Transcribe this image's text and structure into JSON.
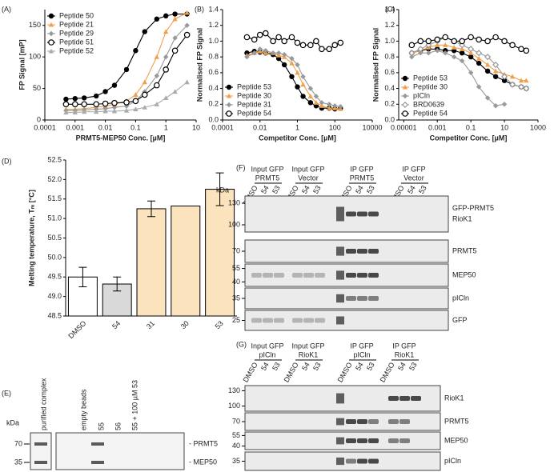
{
  "chart_data": [
    {
      "type": "line",
      "panel": "(A)",
      "x_label": "PRMT5-MEP50 Conc. [µM]",
      "y_label": "FP Signal [mP]",
      "log_x": true,
      "xlim": [
        0.0001,
        10
      ],
      "xticks": [
        0.0001,
        0.001,
        0.01,
        0.1,
        1,
        10
      ],
      "ylim": [
        0,
        175
      ],
      "yticks": [
        0,
        50,
        100,
        150
      ],
      "legend": "upper left",
      "x": [
        0.0005,
        0.001,
        0.002,
        0.005,
        0.01,
        0.02,
        0.05,
        0.1,
        0.2,
        0.5,
        1,
        2,
        5
      ],
      "series": [
        {
          "name": "Peptide 50",
          "color": "#000000",
          "marker": "circle-filled",
          "values": [
            33,
            34,
            35,
            38,
            45,
            55,
            80,
            110,
            140,
            160,
            165,
            168,
            168
          ]
        },
        {
          "name": "Peptide 21",
          "color": "#f0a04b",
          "marker": "triangle",
          "values": [
            17,
            17,
            18,
            20,
            22,
            25,
            30,
            40,
            60,
            100,
            140,
            160,
            170
          ]
        },
        {
          "name": "Peptide 29",
          "color": "#999999",
          "marker": "diamond",
          "values": [
            15,
            15,
            16,
            17,
            18,
            20,
            22,
            30,
            45,
            70,
            100,
            130,
            150
          ]
        },
        {
          "name": "Peptide 51",
          "color": "#000000",
          "marker": "circle-open",
          "values": [
            25,
            25,
            25,
            25,
            26,
            27,
            28,
            30,
            40,
            55,
            80,
            110,
            135
          ]
        },
        {
          "name": "Peptide 52",
          "color": "#aaaaaa",
          "marker": "triangle",
          "values": [
            12,
            12,
            13,
            13,
            14,
            14,
            15,
            17,
            20,
            25,
            35,
            45,
            60
          ]
        }
      ]
    },
    {
      "type": "line",
      "panel": "(B)",
      "x_label": "Competitor Conc. [µM]",
      "y_label": "Normalised FP Signal",
      "log_x": true,
      "xlim": [
        0.0001,
        10000
      ],
      "xticks": [
        0.0001,
        0.01,
        1,
        100,
        10000
      ],
      "ylim": [
        0,
        1.4
      ],
      "yticks": [
        {
          "value": 0,
          "label": "0.0"
        },
        0.2,
        0.4,
        0.6,
        0.8,
        {
          "value": 1,
          "label": "1.0"
        },
        1.2,
        1.4
      ],
      "legend": "lower left",
      "x": [
        0.002,
        0.005,
        0.01,
        0.02,
        0.05,
        0.1,
        0.2,
        0.5,
        1,
        2,
        5,
        10,
        20,
        50,
        100,
        200
      ],
      "series": [
        {
          "name": "Peptide 53",
          "color": "#000000",
          "marker": "circle-filled",
          "values": [
            0.85,
            0.87,
            0.86,
            0.85,
            0.83,
            0.78,
            0.7,
            0.55,
            0.42,
            0.3,
            0.22,
            0.18,
            0.15,
            0.15,
            0.14,
            0.15
          ]
        },
        {
          "name": "Peptide 30",
          "color": "#f0a04b",
          "marker": "triangle",
          "values": [
            0.82,
            0.85,
            0.87,
            0.85,
            0.85,
            0.82,
            0.8,
            0.72,
            0.6,
            0.45,
            0.3,
            0.22,
            0.18,
            0.15,
            0.15,
            0.14
          ]
        },
        {
          "name": "Peptide 31",
          "color": "#999999",
          "marker": "diamond",
          "values": [
            0.8,
            0.85,
            0.9,
            0.88,
            0.85,
            0.85,
            0.83,
            0.78,
            0.7,
            0.55,
            0.4,
            0.3,
            0.22,
            0.2,
            0.18,
            0.17
          ]
        },
        {
          "name": "Peptide 54",
          "color": "#000000",
          "marker": "circle-open",
          "values": [
            1.05,
            1.02,
            1.08,
            1.1,
            1.0,
            1.05,
            1.0,
            1.05,
            0.98,
            0.95,
            0.95,
            1.0,
            0.9,
            0.9,
            0.95,
            0.98
          ]
        }
      ]
    },
    {
      "type": "line",
      "panel": "(C)",
      "x_label": "Competitor Conc. [µM]",
      "y_label": "Normalised FP Signal",
      "log_x": true,
      "xlim": [
        5e-06,
        1000
      ],
      "xticks": [
        1e-05,
        0.001,
        0.1,
        10,
        1000
      ],
      "ylim": [
        0,
        1.4
      ],
      "yticks": [
        {
          "value": 0,
          "label": "0.0"
        },
        0.2,
        0.4,
        0.6,
        0.8,
        {
          "value": 1,
          "label": "1.0"
        },
        1.2,
        1.4
      ],
      "legend": "lower left",
      "x": [
        3e-05,
        0.0001,
        0.0003,
        0.001,
        0.003,
        0.01,
        0.03,
        0.1,
        0.3,
        1,
        3,
        10,
        30,
        100,
        200
      ],
      "series": [
        {
          "name": "Peptide 53",
          "color": "#000000",
          "marker": "circle-filled",
          "values": [
            0.85,
            0.88,
            0.9,
            0.9,
            0.88,
            0.88,
            0.85,
            0.8,
            0.72,
            0.62,
            0.55,
            0.5,
            0.45,
            0.42,
            0.4
          ]
        },
        {
          "name": "Peptide 30",
          "color": "#f0a04b",
          "marker": "triangle",
          "values": [
            0.85,
            0.88,
            0.92,
            0.95,
            0.95,
            0.92,
            0.9,
            0.85,
            0.78,
            0.7,
            0.62,
            0.58,
            0.55,
            0.5,
            0.5
          ]
        },
        {
          "name": "pICln",
          "color": "#999999",
          "marker": "diamond",
          "values": [
            0.8,
            0.85,
            0.85,
            0.88,
            0.85,
            0.8,
            0.75,
            0.6,
            0.42,
            0.28,
            0.18,
            0.2,
            null,
            null,
            null
          ]
        },
        {
          "name": "BRD0639",
          "color": "#999999",
          "marker": "diamond-open",
          "values": [
            0.85,
            0.9,
            0.95,
            1.0,
            1.05,
            1.0,
            0.95,
            0.9,
            0.85,
            0.8,
            0.7,
            0.55,
            0.45,
            0.42,
            0.4
          ]
        },
        {
          "name": "Peptide 54",
          "color": "#000000",
          "marker": "circle-open",
          "values": [
            0.95,
            1.0,
            1.0,
            1.02,
            1.05,
            1.0,
            1.0,
            1.05,
            1.02,
            1.0,
            1.05,
            1.0,
            0.95,
            0.9,
            0.88
          ]
        }
      ]
    },
    {
      "type": "bar",
      "panel": "(D)",
      "y_label": "Melting temperature, Tₘ [°C]",
      "categories": [
        "DMSO",
        "54",
        "31",
        "30",
        "53"
      ],
      "values": [
        49.5,
        49.32,
        51.25,
        51.32,
        51.75
      ],
      "errors": [
        0.25,
        0.18,
        0.2,
        null,
        0.42
      ],
      "colors": [
        "#ffffff",
        "#d9d9d9",
        "#fbe3bd",
        "#fbe3bd",
        "#fbe3bd"
      ],
      "ylim": [
        48.5,
        52.5
      ],
      "yticks": [
        48.5,
        {
          "value": 49,
          "label": "49.0"
        },
        49.5,
        {
          "value": 50,
          "label": "50.0"
        },
        50.5,
        {
          "value": 51,
          "label": "51.0"
        },
        51.5,
        {
          "value": 52,
          "label": "52.0"
        },
        52.5
      ]
    }
  ],
  "blot_e": {
    "panel": "(E)",
    "kda": "kDa",
    "lanes": [
      "purified complex",
      "empty beads",
      "55",
      "56",
      "55 + 100 µM 53"
    ],
    "markers": [
      70,
      35
    ],
    "labels": [
      "- PRMT5",
      "- MEP50"
    ]
  },
  "blot_f": {
    "panel": "(F)",
    "kda": "kDa",
    "groups": [
      {
        "label": [
          "Input GFP",
          "PRMT5"
        ],
        "lanes": [
          "DMSO",
          "54",
          "53"
        ]
      },
      {
        "label": [
          "Input GFP",
          "Vector"
        ],
        "lanes": [
          "DMSO",
          "54",
          "53"
        ]
      },
      {
        "label": [
          "IP GFP",
          "PRMT5"
        ],
        "lanes": [
          "DMSO",
          "54",
          "53"
        ]
      },
      {
        "label": [
          "IP GFP",
          "Vector"
        ],
        "lanes": [
          "DMSO",
          "54",
          "53"
        ]
      }
    ],
    "strips": [
      {
        "markers": [
          130,
          100
        ],
        "labels": [
          "GFP-PRMT5",
          "RioK1"
        ]
      },
      {
        "markers": [
          70
        ],
        "labels": [
          "PRMT5"
        ]
      },
      {
        "markers": [
          55,
          40
        ],
        "labels": [
          "MEP50"
        ]
      },
      {
        "markers": [
          35
        ],
        "labels": [
          "pICln"
        ]
      },
      {
        "markers": [
          25
        ],
        "labels": [
          "GFP"
        ]
      }
    ]
  },
  "blot_g": {
    "panel": "(G)",
    "groups": [
      {
        "label": [
          "Input GFP",
          "pICln"
        ],
        "lanes": [
          "DMSO",
          "54",
          "53"
        ]
      },
      {
        "label": [
          "Input GFP",
          "RioK1"
        ],
        "lanes": [
          "DMSO",
          "54",
          "53"
        ]
      },
      {
        "label": [
          "IP GFP",
          "pICln"
        ],
        "lanes": [
          "DMSO",
          "54",
          "53"
        ]
      },
      {
        "label": [
          "IP GFP",
          "RioK1"
        ],
        "lanes": [
          "DMSO",
          "54",
          "53"
        ]
      }
    ],
    "strips": [
      {
        "markers": [
          130,
          100
        ],
        "labels": [
          "RioK1"
        ]
      },
      {
        "markers": [
          70
        ],
        "labels": [
          "PRMT5"
        ]
      },
      {
        "markers": [
          55,
          40
        ],
        "labels": [
          "MEP50"
        ]
      },
      {
        "markers": [
          35
        ],
        "labels": [
          "pICln"
        ]
      }
    ]
  }
}
